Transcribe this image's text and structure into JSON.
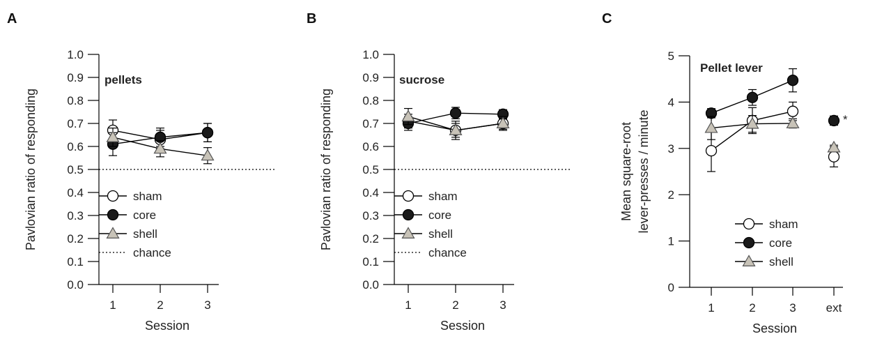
{
  "panels": [
    {
      "letter": "A",
      "chart_data": {
        "type": "line",
        "annotation": "pellets",
        "xlabel": "Session",
        "ylabel": "Pavlovian ratio of responding",
        "categories": [
          "1",
          "2",
          "3"
        ],
        "ylim": [
          0,
          1.0
        ],
        "yticks": [
          "0.0",
          "0.1",
          "0.2",
          "0.3",
          "0.4",
          "0.5",
          "0.6",
          "0.7",
          "0.8",
          "0.9",
          "1.0"
        ],
        "chance": 0.5,
        "series": [
          {
            "name": "sham",
            "marker": "circle",
            "fill": "#ffffff",
            "values": [
              0.67,
              0.63,
              0.66
            ],
            "errors": [
              0.045,
              0.04,
              0.04
            ]
          },
          {
            "name": "core",
            "marker": "circle",
            "fill": "#1a1a1a",
            "values": [
              0.61,
              0.64,
              0.66
            ],
            "errors": [
              0.05,
              0.04,
              0.04
            ]
          },
          {
            "name": "shell",
            "marker": "triangle",
            "fill": "#c8c3b8",
            "values": [
              0.64,
              0.59,
              0.56
            ],
            "errors": [
              0.04,
              0.035,
              0.035
            ]
          }
        ],
        "legend": [
          {
            "label": "sham",
            "marker": "circle",
            "fill": "#ffffff"
          },
          {
            "label": "core",
            "marker": "circle",
            "fill": "#1a1a1a"
          },
          {
            "label": "shell",
            "marker": "triangle",
            "fill": "#c8c3b8"
          },
          {
            "label": "chance",
            "marker": "dotted"
          }
        ]
      }
    },
    {
      "letter": "B",
      "chart_data": {
        "type": "line",
        "annotation": "sucrose",
        "xlabel": "Session",
        "ylabel": "Pavlovian ratio of responding",
        "categories": [
          "1",
          "2",
          "3"
        ],
        "ylim": [
          0,
          1.0
        ],
        "yticks": [
          "0.0",
          "0.1",
          "0.2",
          "0.3",
          "0.4",
          "0.5",
          "0.6",
          "0.7",
          "0.8",
          "0.9",
          "1.0"
        ],
        "chance": 0.5,
        "series": [
          {
            "name": "sham",
            "marker": "circle",
            "fill": "#ffffff",
            "values": [
              0.71,
              0.67,
              0.7
            ],
            "errors": [
              0.03,
              0.03,
              0.025
            ]
          },
          {
            "name": "core",
            "marker": "circle",
            "fill": "#1a1a1a",
            "values": [
              0.7,
              0.745,
              0.74
            ],
            "errors": [
              0.03,
              0.025,
              0.02
            ]
          },
          {
            "name": "shell",
            "marker": "triangle",
            "fill": "#c8c3b8",
            "values": [
              0.73,
              0.67,
              0.7
            ],
            "errors": [
              0.035,
              0.04,
              0.03
            ]
          }
        ],
        "legend": [
          {
            "label": "sham",
            "marker": "circle",
            "fill": "#ffffff"
          },
          {
            "label": "core",
            "marker": "circle",
            "fill": "#1a1a1a"
          },
          {
            "label": "shell",
            "marker": "triangle",
            "fill": "#c8c3b8"
          },
          {
            "label": "chance",
            "marker": "dotted"
          }
        ]
      }
    },
    {
      "letter": "C",
      "chart_data": {
        "type": "line",
        "annotation": "Pellet lever",
        "xlabel": "Session",
        "ylabel": [
          "Mean square-root",
          "lever-presses / minute"
        ],
        "categories": [
          "1",
          "2",
          "3",
          "ext"
        ],
        "ylim": [
          0,
          5
        ],
        "yticks": [
          "0",
          "1",
          "2",
          "3",
          "4",
          "5"
        ],
        "significance_mark": "*",
        "series": [
          {
            "name": "sham",
            "marker": "circle",
            "fill": "#ffffff",
            "values": [
              2.95,
              3.6,
              3.8,
              2.82
            ],
            "errors": [
              0.45,
              0.28,
              0.2,
              0.22
            ],
            "connected_points": 3
          },
          {
            "name": "core",
            "marker": "circle",
            "fill": "#1a1a1a",
            "values": [
              3.76,
              4.1,
              4.47,
              3.6
            ],
            "errors": [
              0.1,
              0.17,
              0.25,
              0.1
            ],
            "connected_points": 3
          },
          {
            "name": "shell",
            "marker": "triangle",
            "fill": "#c8c3b8",
            "values": [
              3.44,
              3.53,
              3.54,
              3.02
            ],
            "errors": [
              0.25,
              0.18,
              0.1,
              0.05
            ],
            "connected_points": 3
          }
        ],
        "legend": [
          {
            "label": "sham",
            "marker": "circle",
            "fill": "#ffffff"
          },
          {
            "label": "core",
            "marker": "circle",
            "fill": "#1a1a1a"
          },
          {
            "label": "shell",
            "marker": "triangle",
            "fill": "#c8c3b8"
          }
        ]
      }
    }
  ]
}
